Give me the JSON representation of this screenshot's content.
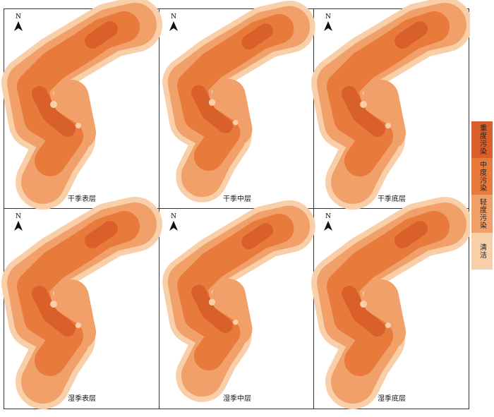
{
  "north": "N",
  "panels": [
    {
      "label": "干季表层"
    },
    {
      "label": "干季中层"
    },
    {
      "label": "干季底层"
    },
    {
      "label": "湿季表层"
    },
    {
      "label": "湿季中层"
    },
    {
      "label": "湿季底层"
    }
  ],
  "legend": [
    "重度污染",
    "中度污染",
    "轻度污染",
    "清洁"
  ]
}
